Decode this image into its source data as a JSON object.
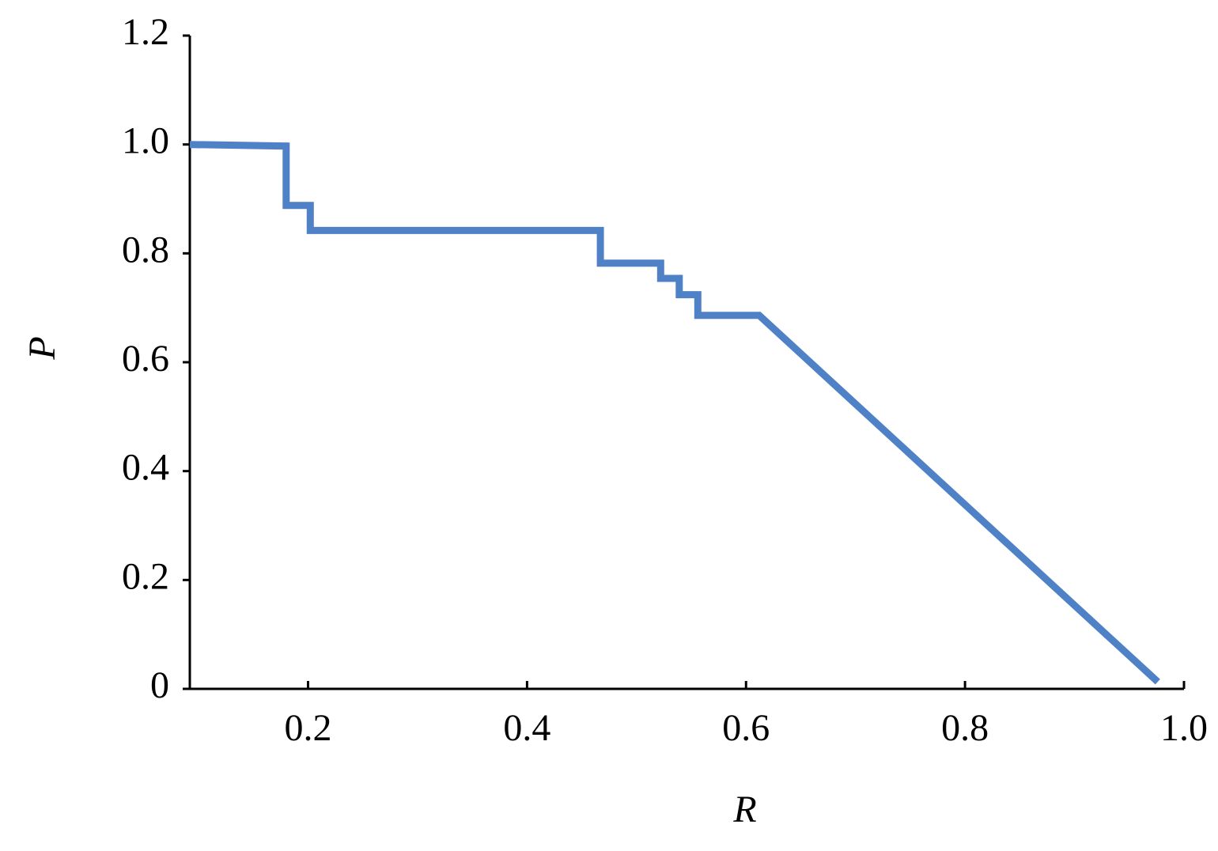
{
  "chart_data": {
    "type": "line",
    "x_label": "R",
    "y_label": "P",
    "x": [
      0.092,
      0.18,
      0.18,
      0.202,
      0.202,
      0.467,
      0.467,
      0.522,
      0.522,
      0.539,
      0.539,
      0.556,
      0.556,
      0.612,
      0.976
    ],
    "values": [
      1.0,
      0.997,
      0.888,
      0.888,
      0.842,
      0.842,
      0.782,
      0.782,
      0.754,
      0.754,
      0.724,
      0.724,
      0.686,
      0.686,
      0.013
    ],
    "color": "#4f81c7",
    "xlim": [
      0.092,
      1.0
    ],
    "xticks": [
      0.2,
      0.4,
      0.6,
      0.8,
      {
        "value": 1.0,
        "label": "1.0"
      }
    ],
    "ylim": [
      0,
      1.2
    ],
    "yticks": [
      0,
      0.2,
      0.4,
      0.6,
      0.8,
      {
        "value": 1.0,
        "label": "1.0"
      },
      1.2
    ],
    "grid": false
  }
}
